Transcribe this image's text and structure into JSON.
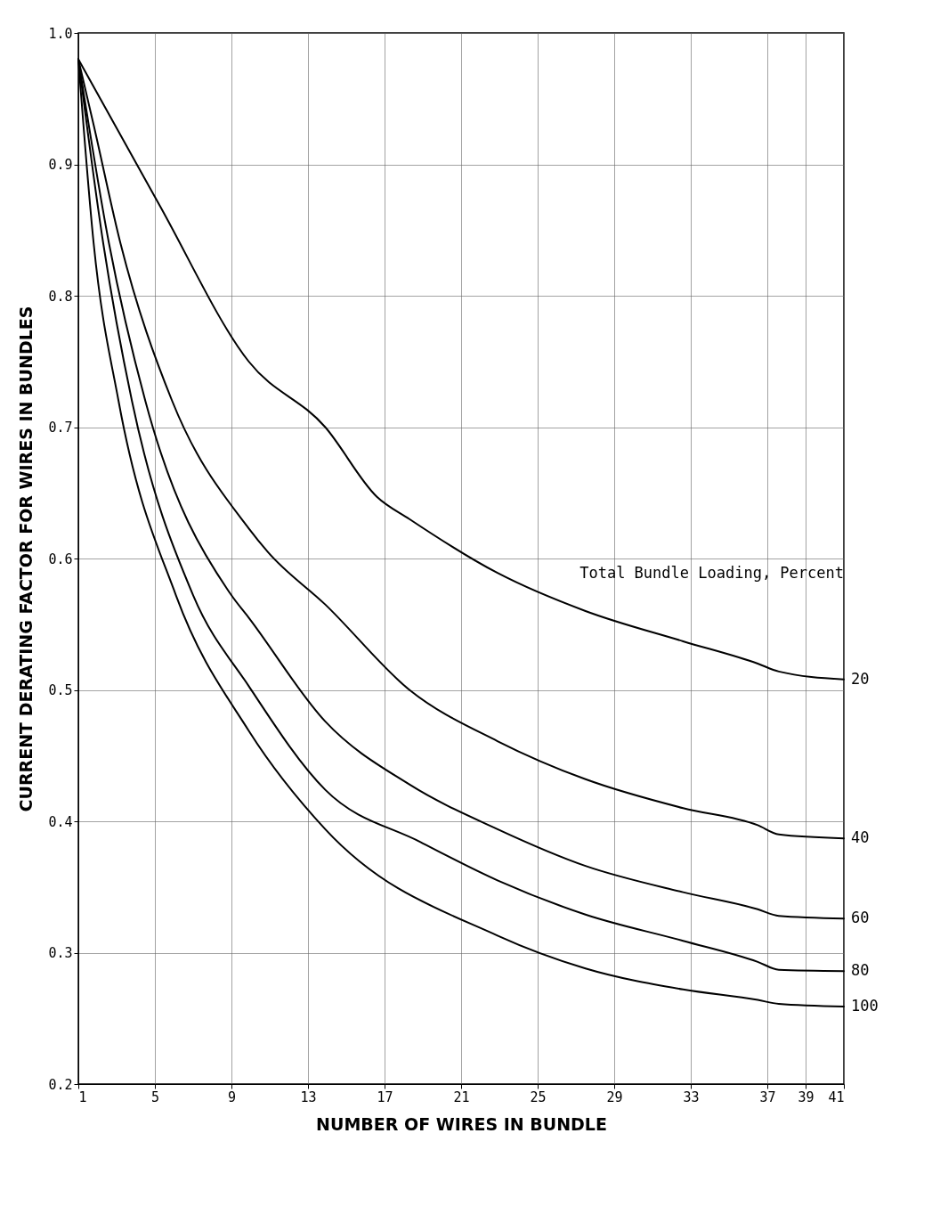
{
  "chart_data": {
    "type": "line",
    "xlabel": "NUMBER OF WIRES IN BUNDLE",
    "ylabel": "CURRENT DERATING FACTOR FOR WIRES IN BUNDLES",
    "legend_title": "Total Bundle Loading, Percent",
    "xlim": [
      1,
      41
    ],
    "xticks": [
      1,
      5,
      9,
      13,
      17,
      21,
      25,
      29,
      33,
      37,
      39,
      41
    ],
    "ylim": [
      0.2,
      1.0
    ],
    "yticks": [
      0.2,
      0.3,
      0.4,
      0.5,
      0.6,
      0.7,
      0.8,
      0.9,
      {
        "value": 1.0,
        "label": "1.0"
      }
    ],
    "grid": true,
    "series": [
      {
        "name": "20",
        "color": "#000000",
        "x": [
          1,
          5.2,
          9.9,
          13.9,
          16.6,
          18.3,
          22.9,
          27.5,
          32.6,
          36.5,
          37.6,
          41
        ],
        "values": [
          0.98,
          0.87,
          0.75,
          0.7,
          0.647,
          0.63,
          0.589,
          0.56,
          0.537,
          0.52,
          0.514,
          0.508
        ]
      },
      {
        "name": "40",
        "color": "#000000",
        "x": [
          1,
          1.8,
          3.2,
          5.9,
          9.9,
          10.9,
          13.9,
          18.3,
          22.9,
          27.5,
          32.6,
          36.5,
          37.6,
          41
        ],
        "values": [
          0.98,
          0.93,
          0.84,
          0.72,
          0.623,
          0.605,
          0.565,
          0.5,
          0.461,
          0.432,
          0.41,
          0.397,
          0.39,
          0.387
        ]
      },
      {
        "name": "60",
        "color": "#000000",
        "x": [
          1,
          2.6,
          4.5,
          9.0,
          9.9,
          13.9,
          18.3,
          22.9,
          27.5,
          32.6,
          36.5,
          37.6,
          41
        ],
        "values": [
          0.98,
          0.84,
          0.72,
          0.572,
          0.555,
          0.476,
          0.428,
          0.394,
          0.366,
          0.346,
          0.333,
          0.328,
          0.326
        ]
      },
      {
        "name": "80",
        "color": "#000000",
        "x": [
          1,
          2.3,
          3.8,
          7.0,
          9.9,
          13.9,
          18.9,
          22.9,
          27.5,
          32.6,
          36.5,
          37.6,
          41
        ],
        "values": [
          0.98,
          0.84,
          0.72,
          0.572,
          0.503,
          0.424,
          0.384,
          0.355,
          0.329,
          0.309,
          0.293,
          0.287,
          0.286
        ]
      },
      {
        "name": "100",
        "color": "#000000",
        "x": [
          1,
          1.8,
          3.1,
          6.1,
          9.9,
          13.9,
          22.9,
          27.5,
          32.6,
          36.5,
          37.6,
          41
        ],
        "values": [
          0.98,
          0.84,
          0.72,
          0.572,
          0.469,
          0.394,
          0.313,
          0.288,
          0.272,
          0.264,
          0.261,
          0.259
        ]
      }
    ]
  }
}
